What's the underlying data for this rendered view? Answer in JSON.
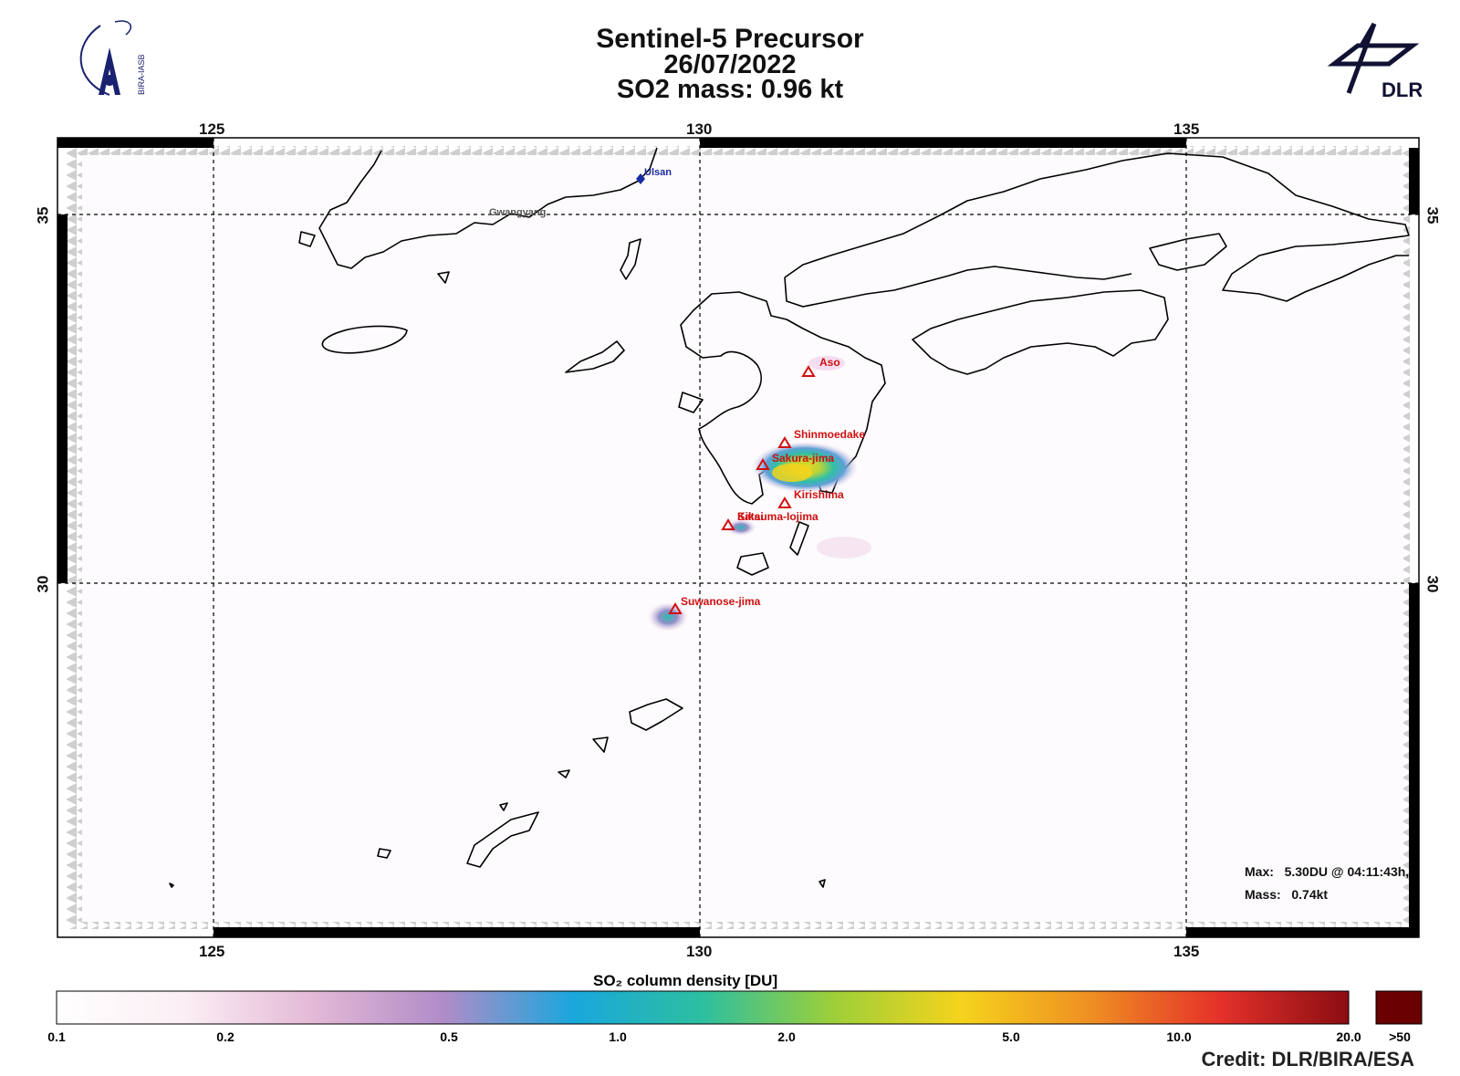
{
  "header": {
    "line1": "Sentinel-5 Precursor",
    "line2": "26/07/2022",
    "line3": "SO2 mass: 0.96   kt"
  },
  "logos": {
    "left": {
      "text": "BIRA-IASB",
      "icon": "bira-iasb-logo"
    },
    "right": {
      "text": "DLR",
      "icon": "dlr-logo"
    }
  },
  "axes": {
    "lon_ticks": [
      "125",
      "130",
      "135"
    ],
    "lat_ticks": [
      "35",
      "30"
    ]
  },
  "volcanoes": [
    {
      "name": "Aso"
    },
    {
      "name": "Shinmoedake"
    },
    {
      "name": "Sakura-jima"
    },
    {
      "name": "Kirishima"
    },
    {
      "name": "Kikai"
    },
    {
      "name": "Satsuma-Iojima"
    },
    {
      "name": "Suwanose-jima"
    }
  ],
  "cities": [
    {
      "name": "Ulsan",
      "color": "#1a2aa0"
    },
    {
      "name": "Gwangyang",
      "color": "#555555"
    }
  ],
  "stats": {
    "max_label": "Max:",
    "max_value": "5.30DU @ 04:11:43h,",
    "mass_label": "Mass:",
    "mass_value": "0.74kt"
  },
  "colorbar": {
    "title": "SO₂ column density [DU]",
    "labels": [
      "0.1",
      "0.2",
      "0.5",
      "1.0",
      "2.0",
      "5.0",
      "10.0",
      "20.0",
      ">50"
    ],
    "colors": [
      "#ffffff",
      "#fbeef4",
      "#e3b8d6",
      "#b08cc8",
      "#19a7dc",
      "#2dbfa0",
      "#9ccf3a",
      "#f5d31c",
      "#ef8f22",
      "#e5312a",
      "#8b0d12",
      "#6a0000"
    ]
  },
  "credit": "Credit: DLR/BIRA/ESA"
}
